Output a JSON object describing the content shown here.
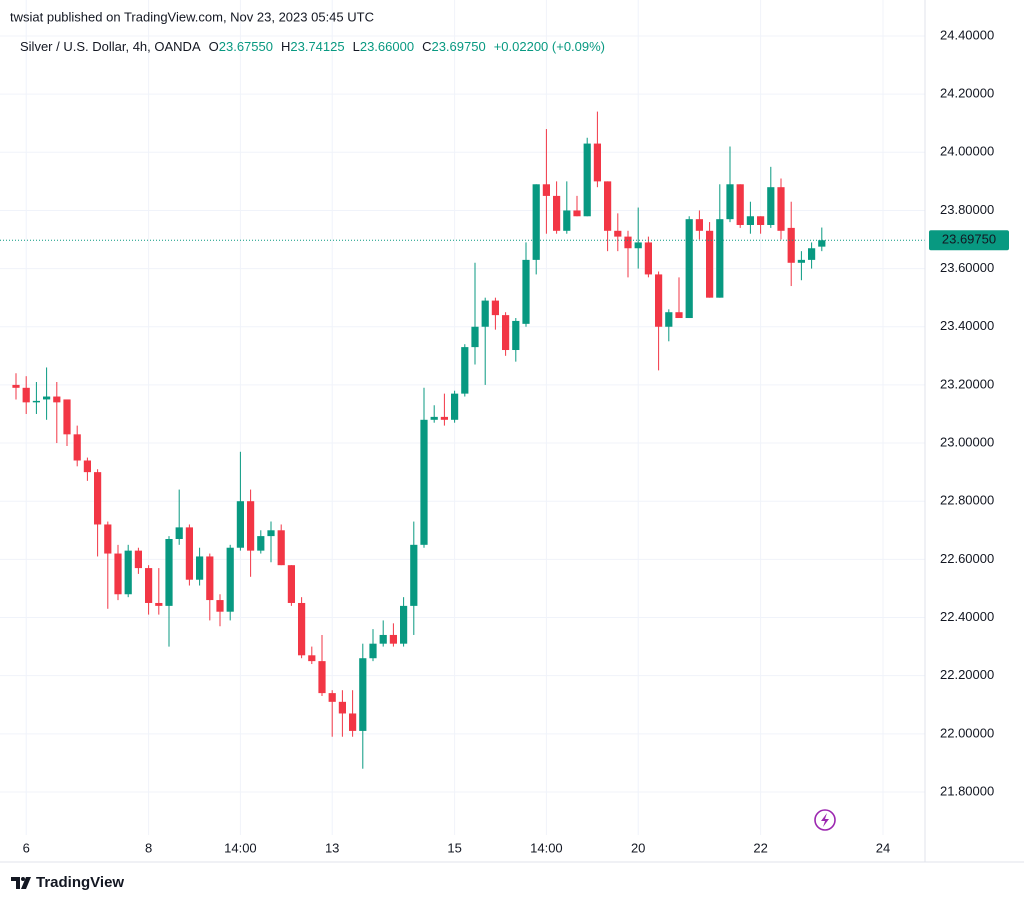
{
  "published": "twsiat published on TradingView.com, Nov 23, 2023 05:45 UTC",
  "footer": "TradingView",
  "header": {
    "symbol": "Silver / U.S. Dollar, 4h, OANDA",
    "ohlc": [
      {
        "key": "O",
        "value": "23.67550"
      },
      {
        "key": "H",
        "value": "23.74125"
      },
      {
        "key": "L",
        "value": "23.66000"
      },
      {
        "key": "C",
        "value": "23.69750"
      }
    ],
    "change": "+0.02200 (+0.09%)"
  },
  "chart_data": {
    "type": "candlestick",
    "up_color": "#089981",
    "down_color": "#f23645",
    "grid": true,
    "categories": [
      null,
      "6",
      null,
      null,
      null,
      null,
      null,
      null,
      null,
      null,
      null,
      null,
      null,
      "8",
      null,
      null,
      null,
      null,
      null,
      null,
      null,
      null,
      "14:00",
      null,
      null,
      null,
      null,
      null,
      null,
      null,
      null,
      "13",
      null,
      null,
      null,
      null,
      null,
      null,
      null,
      null,
      null,
      null,
      null,
      "15",
      null,
      null,
      null,
      null,
      null,
      null,
      null,
      null,
      "14:00",
      null,
      null,
      null,
      null,
      null,
      null,
      null,
      null,
      "20",
      null,
      null,
      null,
      null,
      null,
      null,
      null,
      null,
      null,
      null,
      null,
      "22",
      null,
      null,
      null,
      null,
      null,
      null,
      null,
      null,
      null,
      null,
      null,
      "24",
      null,
      null,
      null,
      null
    ],
    "open": [
      23.2,
      23.19,
      23.14,
      23.15,
      23.16,
      23.15,
      23.03,
      22.94,
      22.9,
      22.72,
      22.62,
      22.48,
      22.63,
      22.57,
      22.45,
      22.44,
      22.67,
      22.71,
      22.53,
      22.61,
      22.46,
      22.42,
      22.64,
      22.8,
      22.63,
      22.68,
      22.7,
      22.58,
      22.45,
      22.27,
      22.25,
      22.14,
      22.11,
      22.07,
      22.01,
      22.26,
      22.31,
      22.34,
      22.31,
      22.44,
      22.65,
      23.08,
      23.09,
      23.08,
      23.17,
      23.33,
      23.4,
      23.49,
      23.44,
      23.32,
      23.41,
      23.63,
      23.89,
      23.85,
      23.73,
      23.8,
      23.78,
      24.03,
      23.9,
      23.73,
      23.71,
      23.67,
      23.69,
      23.58,
      23.4,
      23.45,
      23.43,
      23.77,
      23.73,
      23.5,
      23.77,
      23.89,
      23.75,
      23.78,
      23.75,
      23.88,
      23.74,
      23.62,
      23.63,
      23.6755,
      null,
      null,
      null,
      null,
      null,
      null,
      null,
      null,
      null,
      null
    ],
    "high": [
      23.24,
      23.23,
      23.21,
      23.26,
      23.21,
      23.15,
      23.06,
      22.95,
      22.91,
      22.73,
      22.65,
      22.65,
      22.64,
      22.58,
      22.57,
      22.68,
      22.84,
      22.72,
      22.64,
      22.62,
      22.48,
      22.65,
      22.97,
      22.84,
      22.7,
      22.73,
      22.72,
      22.58,
      22.47,
      22.3,
      22.34,
      22.15,
      22.15,
      22.15,
      22.31,
      22.36,
      22.39,
      22.38,
      22.47,
      22.73,
      23.19,
      23.13,
      23.17,
      23.18,
      23.34,
      23.62,
      23.5,
      23.5,
      23.45,
      23.43,
      23.69,
      23.89,
      24.08,
      23.9,
      23.9,
      23.85,
      24.05,
      24.14,
      23.9,
      23.79,
      23.73,
      23.81,
      23.71,
      23.59,
      23.46,
      23.57,
      23.78,
      23.8,
      23.76,
      23.89,
      24.02,
      23.89,
      23.83,
      23.78,
      23.95,
      23.91,
      23.83,
      23.66,
      23.69,
      23.74125,
      null,
      null,
      null,
      null,
      null,
      null,
      null,
      null,
      null,
      null
    ],
    "low": [
      23.15,
      23.1,
      23.1,
      23.08,
      23.0,
      22.99,
      22.92,
      22.87,
      22.61,
      22.43,
      22.46,
      22.47,
      22.55,
      22.41,
      22.41,
      22.3,
      22.65,
      22.51,
      22.51,
      22.39,
      22.37,
      22.39,
      22.63,
      22.54,
      22.62,
      22.59,
      22.58,
      22.44,
      22.26,
      22.24,
      22.13,
      21.99,
      21.99,
      21.99,
      21.88,
      22.25,
      22.3,
      22.3,
      22.3,
      22.34,
      22.64,
      23.07,
      23.06,
      23.07,
      23.16,
      23.27,
      23.2,
      23.39,
      23.3,
      23.28,
      23.4,
      23.58,
      23.72,
      23.72,
      23.72,
      23.78,
      23.78,
      23.88,
      23.66,
      23.66,
      23.57,
      23.6,
      23.57,
      23.25,
      23.35,
      23.43,
      23.43,
      23.7,
      23.5,
      23.5,
      23.76,
      23.74,
      23.72,
      23.72,
      23.74,
      23.7,
      23.54,
      23.56,
      23.6,
      23.66,
      null,
      null,
      null,
      null,
      null,
      null,
      null,
      null,
      null,
      null
    ],
    "close": [
      23.19,
      23.14,
      23.145,
      23.16,
      23.14,
      23.03,
      22.94,
      22.9,
      22.72,
      22.62,
      22.48,
      22.63,
      22.57,
      22.45,
      22.44,
      22.67,
      22.71,
      22.53,
      22.61,
      22.46,
      22.42,
      22.64,
      22.8,
      22.63,
      22.68,
      22.7,
      22.58,
      22.45,
      22.27,
      22.25,
      22.14,
      22.11,
      22.07,
      22.01,
      22.26,
      22.31,
      22.34,
      22.31,
      22.44,
      22.65,
      23.08,
      23.09,
      23.08,
      23.17,
      23.33,
      23.4,
      23.49,
      23.44,
      23.32,
      23.42,
      23.63,
      23.89,
      23.85,
      23.73,
      23.8,
      23.78,
      24.03,
      23.9,
      23.73,
      23.71,
      23.67,
      23.69,
      23.58,
      23.4,
      23.45,
      23.43,
      23.77,
      23.73,
      23.5,
      23.77,
      23.89,
      23.75,
      23.78,
      23.75,
      23.88,
      23.73,
      23.62,
      23.63,
      23.67,
      23.6975,
      null,
      null,
      null,
      null,
      null,
      null,
      null,
      null,
      null,
      null
    ],
    "last_price": {
      "value": 23.6975,
      "label": "23.69750"
    },
    "ylim": [
      21.652,
      24.455
    ],
    "yticks": [
      {
        "value": 21.8,
        "label": "21.80000"
      },
      {
        "value": 22.0,
        "label": "22.00000"
      },
      {
        "value": 22.2,
        "label": "22.20000"
      },
      {
        "value": 22.4,
        "label": "22.40000"
      },
      {
        "value": 22.6,
        "label": "22.60000"
      },
      {
        "value": 22.8,
        "label": "22.80000"
      },
      {
        "value": 23.0,
        "label": "23.00000"
      },
      {
        "value": 23.2,
        "label": "23.20000"
      },
      {
        "value": 23.4,
        "label": "23.40000"
      },
      {
        "value": 23.6,
        "label": "23.60000"
      },
      {
        "value": 23.8,
        "label": "23.80000"
      },
      {
        "value": 24.0,
        "label": "24.00000"
      },
      {
        "value": 24.2,
        "label": "24.20000"
      },
      {
        "value": 24.4,
        "label": "24.40000"
      }
    ]
  }
}
